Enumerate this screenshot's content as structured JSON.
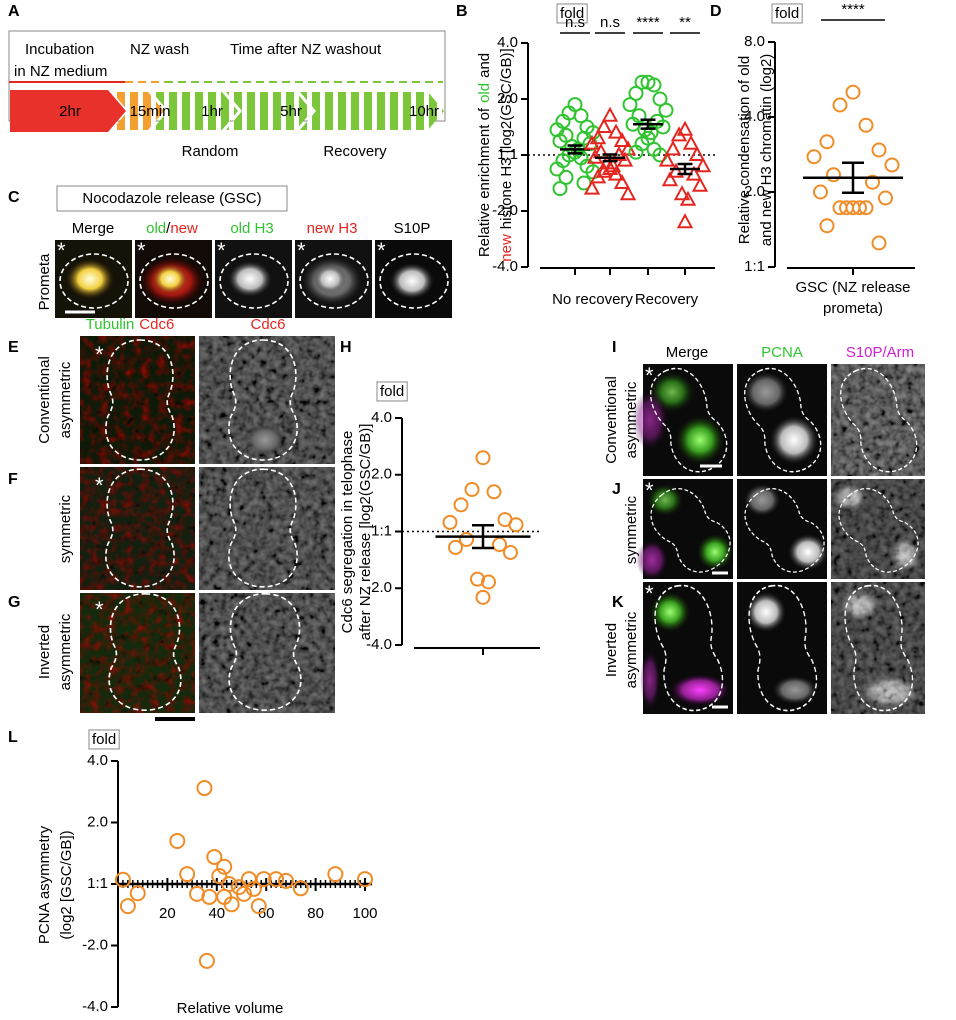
{
  "panel_labels": [
    "A",
    "B",
    "C",
    "D",
    "E",
    "F",
    "G",
    "H",
    "I",
    "J",
    "K",
    "L"
  ],
  "asterisk": "*",
  "panel_a": {
    "incubation": [
      "Incubation",
      "in NZ medium"
    ],
    "wash": "NZ wash",
    "washout": "Time after NZ washout",
    "times": [
      "2hr",
      "15min",
      "1hr",
      "5hr",
      "10hr"
    ],
    "phases": [
      "Random",
      "Recovery"
    ]
  },
  "panel_c": {
    "title": "Nocodazole release (GSC)",
    "columns": [
      "Merge",
      [
        "old",
        "/",
        "new"
      ],
      "old H3",
      "new H3",
      "S10P"
    ],
    "row": "Prometa"
  },
  "panel_efg": {
    "columns": [
      [
        "Tubulin",
        "Cdc6"
      ],
      "Cdc6"
    ],
    "rows": [
      [
        "Conventional",
        "asymmetric"
      ],
      [
        "symmetric"
      ],
      [
        "Inverted",
        "asymmetric"
      ]
    ]
  },
  "panel_ijk": {
    "columns": [
      "Merge",
      "PCNA",
      "S10P/Arm"
    ],
    "rows": [
      [
        "Conventional",
        "asymmetric"
      ],
      [
        "symmetric"
      ],
      [
        "Inverted",
        "asymmetric"
      ]
    ]
  },
  "chart_data": [
    {
      "type": "dot",
      "unit_label": "fold",
      "y_label": [
        [
          {
            "text": "Relative enrichment of",
            "color": "#000000"
          },
          {
            "text": "old",
            "color": "#2fc42f"
          },
          {
            "text": "and",
            "color": "#000000"
          }
        ],
        [
          {
            "text": "new",
            "color": "#e52620"
          },
          {
            "text": "histone H3 [log2(GSC/GB)]",
            "color": "#000000"
          }
        ]
      ],
      "ylim": [
        -2,
        2
      ],
      "yticks": [
        {
          "value": 2,
          "label": "4.0"
        },
        {
          "value": 1,
          "label": "2.0"
        },
        {
          "value": 0,
          "label": "1:1"
        },
        {
          "value": -1,
          "label": "-2.0"
        },
        {
          "value": -2,
          "label": "-4.0"
        }
      ],
      "reference_line": 0,
      "group_labels": [
        "No recovery",
        "Recovery"
      ],
      "groups": [
        {
          "marker": "circle",
          "color": "#2fc42f",
          "significance": "n.s",
          "mean": 0.1,
          "sem": 0.07,
          "values": [
            0.9,
            0.75,
            0.7,
            0.6,
            0.5,
            0.45,
            0.4,
            0.35,
            0.3,
            0.25,
            0.2,
            0.15,
            0.1,
            0.05,
            0,
            -0.05,
            -0.1,
            -0.2,
            -0.25,
            -0.3,
            -0.4,
            -0.5,
            -0.6
          ]
        },
        {
          "marker": "triangle",
          "color": "#e52620",
          "significance": "n.s",
          "mean": -0.05,
          "sem": 0.06,
          "values": [
            0.7,
            0.5,
            0.4,
            0.3,
            0.25,
            0.2,
            0.1,
            0.05,
            0,
            -0.05,
            -0.1,
            -0.15,
            -0.2,
            -0.25,
            -0.3,
            -0.35,
            -0.4,
            -0.5,
            -0.6,
            -0.7
          ]
        },
        {
          "marker": "circle",
          "color": "#2fc42f",
          "significance": "****",
          "mean": 0.55,
          "sem": 0.08,
          "values": [
            1.3,
            1.3,
            1.25,
            1.1,
            1.0,
            0.9,
            0.8,
            0.7,
            0.6,
            0.55,
            0.5,
            0.45,
            0.4,
            0.3,
            0.2,
            0.1,
            0.05,
            0
          ]
        },
        {
          "marker": "triangle",
          "color": "#e52620",
          "significance": "**",
          "mean": -0.25,
          "sem": 0.09,
          "values": [
            0.45,
            0.35,
            0.2,
            0.1,
            0,
            -0.1,
            -0.2,
            -0.3,
            -0.35,
            -0.45,
            -0.55,
            -0.7,
            -0.8,
            -1.2
          ]
        }
      ]
    },
    {
      "type": "dot",
      "unit_label": "fold",
      "y_label": [
        "Relative condensation of old",
        "and new H3 chromatin (log2)"
      ],
      "ylim": [
        0,
        3
      ],
      "yticks": [
        {
          "value": 3,
          "label": "8.0"
        },
        {
          "value": 2,
          "label": "4.0"
        },
        {
          "value": 1,
          "label": "2.0"
        },
        {
          "value": 0,
          "label": "1:1"
        }
      ],
      "x_label": [
        "GSC (NZ release",
        "prometa)"
      ],
      "groups": [
        {
          "marker": "circle",
          "color": "#f08c28",
          "significance": "****",
          "mean": 1.19,
          "sem": 0.2,
          "values": [
            2.33,
            2.16,
            1.89,
            1.67,
            1.56,
            1.47,
            1.36,
            1.23,
            1.13,
            1.0,
            0.92,
            0.79,
            0.79,
            0.79,
            0.79,
            0.79,
            0.55,
            0.32
          ]
        }
      ]
    },
    {
      "type": "dot",
      "unit_label": "fold",
      "y_label": [
        "Cdc6 segregation in telophase",
        "after NZ release [log2(GSC/GB)]"
      ],
      "ylim": [
        -2,
        2
      ],
      "yticks": [
        {
          "value": 2,
          "label": "4.0"
        },
        {
          "value": 1,
          "label": "2.0"
        },
        {
          "value": 0,
          "label": "1:1"
        },
        {
          "value": -1,
          "label": "-2.0"
        },
        {
          "value": -2,
          "label": "-4.0"
        }
      ],
      "reference_line": 0,
      "groups": [
        {
          "marker": "circle",
          "color": "#f08c28",
          "mean": -0.09,
          "sem": 0.2,
          "values": [
            1.3,
            0.74,
            0.7,
            0.47,
            0.21,
            0.16,
            0.12,
            -0.14,
            -0.23,
            -0.28,
            -0.37,
            -0.84,
            -0.89,
            -1.16
          ]
        }
      ]
    },
    {
      "type": "scatter",
      "unit_label": "fold",
      "y_label": [
        "PCNA asymmetry",
        "(log2 [GSC/GB])"
      ],
      "x_label": "Relative volume",
      "color": "#f08c28",
      "xlim": [
        0,
        100
      ],
      "xticks": [
        20,
        40,
        60,
        80,
        100
      ],
      "xminorticks": [
        2,
        4,
        6,
        8,
        10,
        12,
        14,
        16,
        18,
        22,
        24,
        26,
        28,
        30,
        32,
        34,
        36,
        38,
        42,
        44,
        46,
        48,
        50,
        52,
        54,
        56,
        58,
        62,
        64,
        66,
        68,
        70,
        72,
        74,
        76,
        78,
        82,
        84,
        86,
        88,
        90,
        92,
        94,
        96,
        98
      ],
      "ylim": [
        -2,
        2
      ],
      "yticks": [
        {
          "value": 2,
          "label": "4.0"
        },
        {
          "value": 1,
          "label": "2.0"
        },
        {
          "value": 0,
          "label": "1:1"
        },
        {
          "value": -1,
          "label": "-2.0"
        },
        {
          "value": -2,
          "label": "-4.0"
        }
      ],
      "x": [
        2,
        4,
        8,
        24,
        35,
        28,
        32,
        36,
        39,
        41,
        43,
        45,
        43,
        46,
        49,
        51,
        53,
        55,
        57,
        59,
        64,
        68,
        74,
        88,
        100,
        37
      ],
      "values": [
        0.07,
        -0.36,
        -0.15,
        0.7,
        1.56,
        0.16,
        -0.16,
        -1.25,
        0.44,
        0.13,
        0.28,
        0,
        -0.21,
        -0.33,
        -0.05,
        -0.16,
        0.08,
        -0.08,
        -0.36,
        0.08,
        0.08,
        0.05,
        -0.07,
        0.16,
        0.08,
        -0.21
      ]
    }
  ]
}
